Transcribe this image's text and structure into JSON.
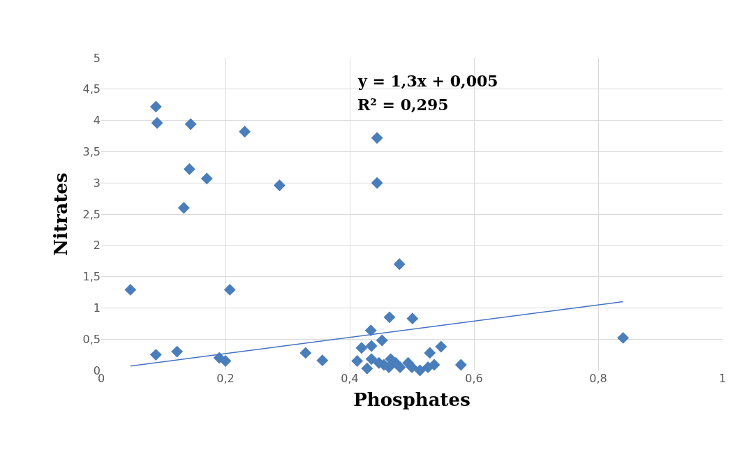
{
  "chart_data": {
    "type": "scatter",
    "xlabel": "Phosphates",
    "ylabel": "Nitrates",
    "annotations": [
      "y = 1,3x + 0,005",
      "R² = 0,295"
    ],
    "xlim": [
      0,
      1
    ],
    "xticks": [
      0,
      {
        "value": 0.2,
        "label": "0,2"
      },
      {
        "value": 0.4,
        "label": "0,4"
      },
      {
        "value": 0.6,
        "label": "0,6"
      },
      {
        "value": 0.8,
        "label": "0,8"
      },
      1
    ],
    "ylim": [
      0,
      5
    ],
    "yticks": [
      0,
      {
        "value": 0.5,
        "label": "0,5"
      },
      1,
      {
        "value": 1.5,
        "label": "1,5"
      },
      2,
      {
        "value": 2.5,
        "label": "2,5"
      },
      3,
      {
        "value": 3.5,
        "label": "3,5"
      },
      4,
      {
        "value": 4.5,
        "label": "4,5"
      },
      5
    ],
    "grid": true,
    "legend": false,
    "series": [
      {
        "marker": "diamond",
        "color": "#4a7ebb",
        "x": [
          0.047,
          0.088,
          0.09,
          0.144,
          0.231,
          0.142,
          0.17,
          0.133,
          0.287,
          0.207,
          0.444,
          0.444,
          0.48,
          0.088,
          0.122,
          0.19,
          0.2,
          0.329,
          0.356,
          0.84,
          0.464,
          0.501,
          0.434,
          0.452,
          0.419,
          0.435,
          0.412,
          0.428,
          0.435,
          0.529,
          0.547,
          0.579,
          0.447,
          0.463,
          0.466,
          0.481,
          0.494,
          0.5,
          0.513,
          0.526,
          0.536,
          0.474,
          0.455
        ],
        "values": [
          1.29,
          4.22,
          3.96,
          3.94,
          3.82,
          3.22,
          3.07,
          2.6,
          2.96,
          1.29,
          3.72,
          3.0,
          1.7,
          0.25,
          0.3,
          0.2,
          0.15,
          0.28,
          0.16,
          0.52,
          0.85,
          0.83,
          0.64,
          0.48,
          0.36,
          0.39,
          0.15,
          0.03,
          0.18,
          0.28,
          0.38,
          0.09,
          0.12,
          0.05,
          0.18,
          0.05,
          0.12,
          0.05,
          0.0,
          0.05,
          0.09,
          0.12,
          0.09
        ]
      },
      {
        "type": "line",
        "marker": "none",
        "color": "#4472c4",
        "x": [
          0.047,
          0.84
        ],
        "values": [
          0.07,
          1.1
        ]
      }
    ]
  }
}
